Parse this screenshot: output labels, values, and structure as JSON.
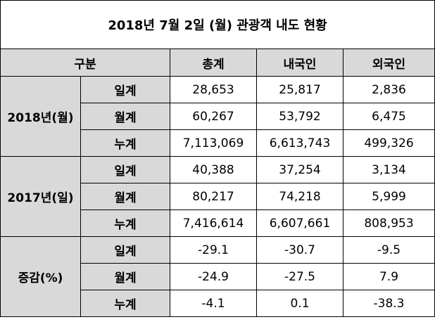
{
  "title": "2018년 7월 2일 (월) 관광객 내도 현황",
  "headers": {
    "category": "구분",
    "total": "총계",
    "domestic": "내국인",
    "foreign": "외국인"
  },
  "groups": [
    {
      "label": "2018년(월)",
      "rows": [
        {
          "label": "일계",
          "total": "28,653",
          "domestic": "25,817",
          "foreign": "2,836"
        },
        {
          "label": "월계",
          "total": "60,267",
          "domestic": "53,792",
          "foreign": "6,475"
        },
        {
          "label": "누계",
          "total": "7,113,069",
          "domestic": "6,613,743",
          "foreign": "499,326"
        }
      ]
    },
    {
      "label": "2017년(일)",
      "rows": [
        {
          "label": "일계",
          "total": "40,388",
          "domestic": "37,254",
          "foreign": "3,134"
        },
        {
          "label": "월계",
          "total": "80,217",
          "domestic": "74,218",
          "foreign": "5,999"
        },
        {
          "label": "누계",
          "total": "7,416,614",
          "domestic": "6,607,661",
          "foreign": "808,953"
        }
      ]
    },
    {
      "label": "증감(%)",
      "rows": [
        {
          "label": "일계",
          "total": "-29.1",
          "domestic": "-30.7",
          "foreign": "-9.5"
        },
        {
          "label": "월계",
          "total": "-24.9",
          "domestic": "-27.5",
          "foreign": "7.9"
        },
        {
          "label": "누계",
          "total": "-4.1",
          "domestic": "0.1",
          "foreign": "-38.3"
        }
      ]
    }
  ]
}
